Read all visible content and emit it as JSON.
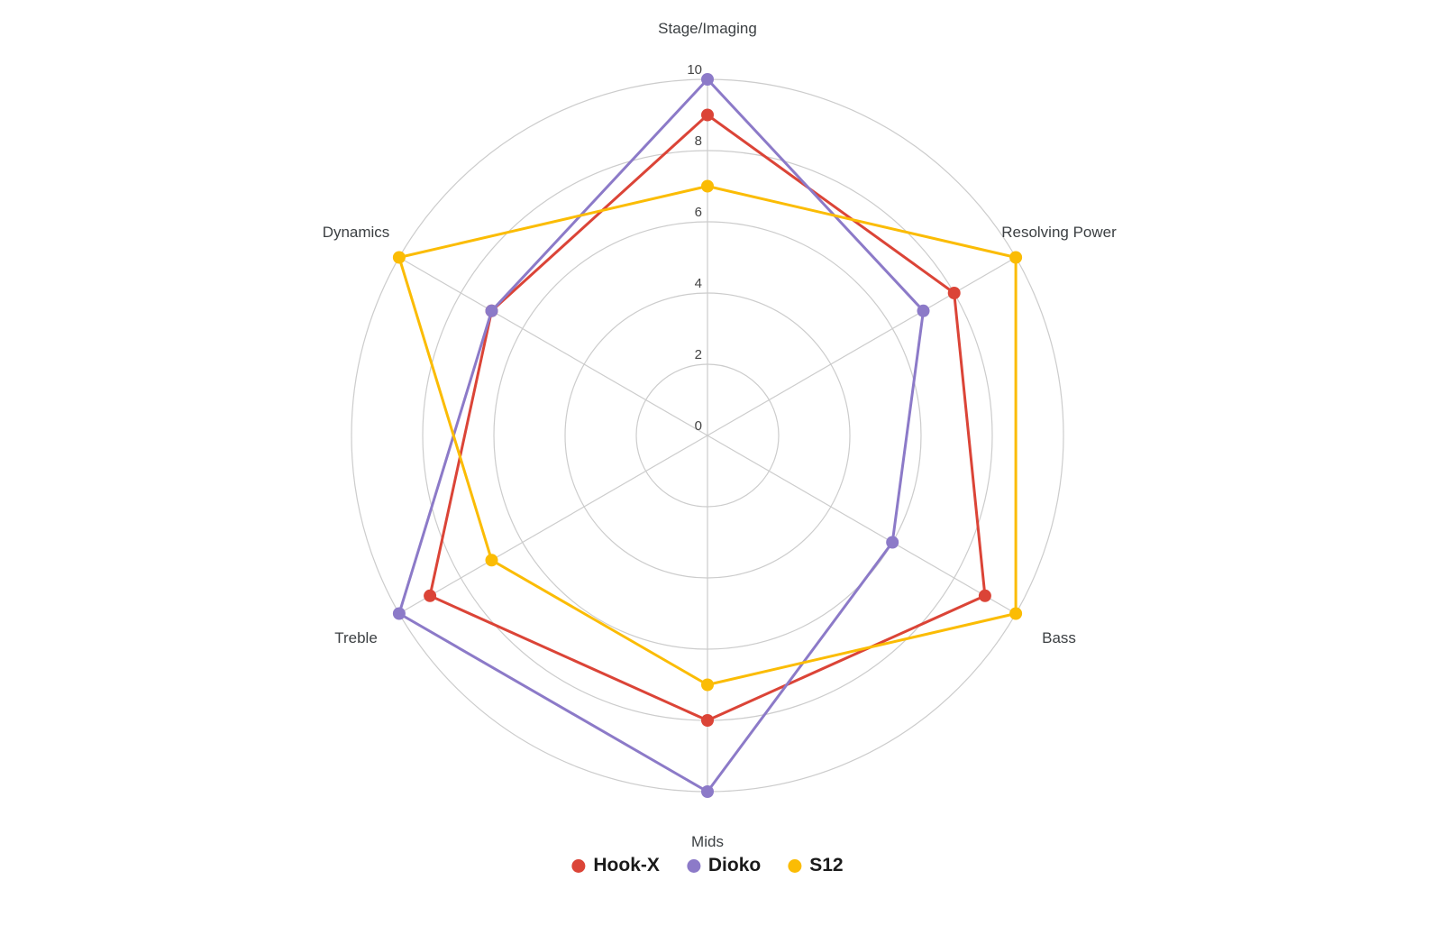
{
  "chart_data": {
    "type": "radar",
    "categories": [
      "Stage/Imaging",
      "Resolving Power",
      "Bass",
      "Mids",
      "Treble",
      "Dynamics"
    ],
    "ticks": [
      0,
      2,
      4,
      6,
      8,
      10
    ],
    "rmax": 10,
    "grid": "circular",
    "legend_position": "bottom",
    "grid_color": "#cccccc",
    "series": [
      {
        "name": "Hook-X",
        "color": "#DB4437",
        "values": [
          9,
          8,
          9,
          8,
          9,
          7
        ]
      },
      {
        "name": "Dioko",
        "color": "#8C7AC8",
        "values": [
          10,
          7,
          6,
          10,
          10,
          7
        ]
      },
      {
        "name": "S12",
        "color": "#FBBC04",
        "values": [
          7,
          10,
          10,
          7,
          7,
          10
        ]
      }
    ]
  }
}
